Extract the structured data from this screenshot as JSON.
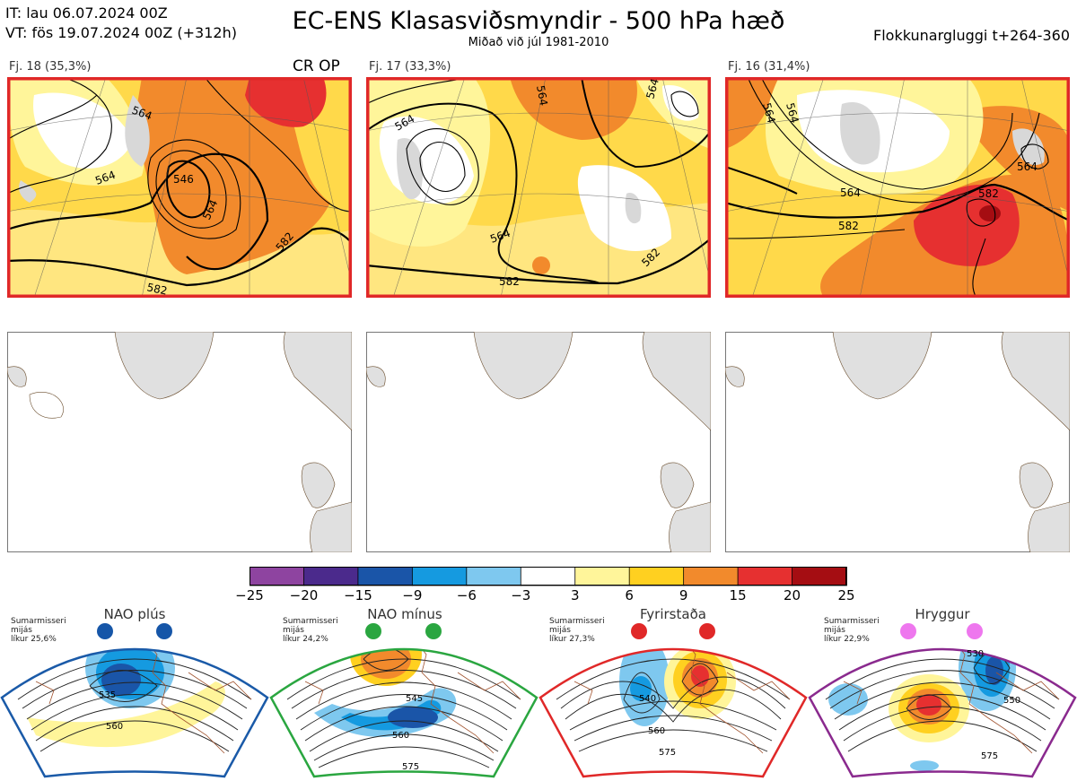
{
  "header": {
    "it_line": "IT: lau 06.07.2024 00Z",
    "vt_line": "VT: fös 19.07.2024 00Z  (+312h)",
    "title": "EC-ENS Klasasviðsmyndir - 500 hPa hæð",
    "subtitle": "Miðað við júl 1981-2010",
    "window": "Flokkunargluggi t+264-360"
  },
  "clusters": [
    {
      "label": "Fj. 18 (35,3%)",
      "badge": "CR OP",
      "contours": [
        "564",
        "546",
        "564",
        "564",
        "582",
        "582"
      ],
      "highlighted": true
    },
    {
      "label": "Fj. 17 (33,3%)",
      "badge": "",
      "contours": [
        "564",
        "564",
        "564",
        "564",
        "582",
        "582"
      ],
      "highlighted": true
    },
    {
      "label": "Fj. 16 (31,4%)",
      "badge": "",
      "contours": [
        "564",
        "564",
        "564",
        "564",
        "582",
        "582"
      ],
      "highlighted": true
    }
  ],
  "colorbar": {
    "labels": [
      "−25",
      "−20",
      "−15",
      "−9",
      "−6",
      "−3",
      "3",
      "6",
      "9",
      "15",
      "20",
      "25"
    ],
    "colors": [
      "#8e44a0",
      "#4b2a8c",
      "#1a55a8",
      "#159ae0",
      "#7ec8ef",
      "#ffffff",
      "#fff59a",
      "#ffd020",
      "#f28a2c",
      "#e63030",
      "#a50d12"
    ]
  },
  "regimes": [
    {
      "title": "NAO plús",
      "note": [
        "Sumarmisseri",
        "mijás",
        "líkur 25,6%"
      ],
      "color": "#1a5aa8",
      "dot_color": "#1656a8",
      "labels": [
        "535",
        "560"
      ]
    },
    {
      "title": "NAO mínus",
      "note": [
        "Sumarmisseri",
        "mijás",
        "líkur 24,2%"
      ],
      "color": "#2aa640",
      "dot_color": "#2aa640",
      "labels": [
        "545",
        "560",
        "575"
      ]
    },
    {
      "title": "Fyrirstaða",
      "note": [
        "Sumarmisseri",
        "mijás",
        "líkur 27,3%"
      ],
      "color": "#e02828",
      "dot_color": "#e02828",
      "labels": [
        "540",
        "560",
        "575"
      ]
    },
    {
      "title": "Hryggur",
      "note": [
        "Sumarmisseri",
        "mijás",
        "líkur 22,9%"
      ],
      "color": "#8a2a8e",
      "dot_color": "#ee77ee",
      "labels": [
        "530",
        "550",
        "575"
      ]
    }
  ]
}
